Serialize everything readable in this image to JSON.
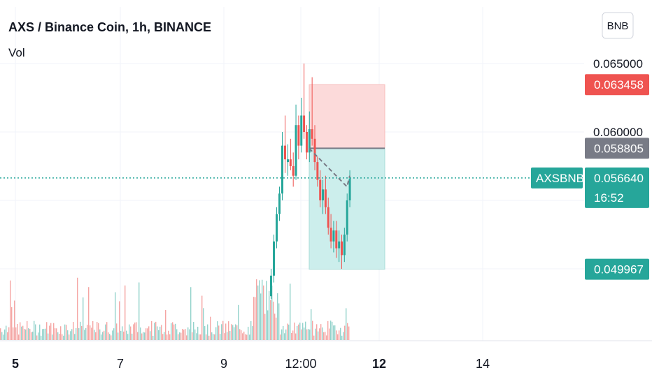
{
  "header": {
    "title": "AXS / Binance Coin, 1h, BINANCE",
    "volume_label": "Vol",
    "currency_button": "BNB"
  },
  "colors": {
    "up": "#26a69a",
    "down": "#ef5350",
    "up_volume": "#94d3cc",
    "down_volume": "#f5a6a4",
    "target_zone": "#cceeec",
    "stop_zone": "#fcdada",
    "entry_line": "#787b86",
    "grid": "#f0f3fa",
    "text": "#131722"
  },
  "chart_data": {
    "type": "candlestick",
    "symbol": "AXSBNB",
    "ylim": [
      0.046,
      0.069
    ],
    "y_ticks": [
      "0.065000",
      "0.060000"
    ],
    "x_ticks": [
      "5",
      "7",
      "9",
      "12:00",
      "12",
      "14"
    ],
    "bold_x_ticks": [
      "5",
      "12"
    ],
    "price_badges": [
      {
        "name": "stop-loss-price",
        "value": "0.063458",
        "color": "#ef5350",
        "y": 0.063458
      },
      {
        "name": "entry-price",
        "value": "0.058805",
        "color": "#787b86",
        "y": 0.058805
      },
      {
        "name": "last-price",
        "value": "0.056640",
        "color": "#26a69a",
        "y": 0.05664,
        "sub": "16:52",
        "symbol_label": "AXSBNB"
      },
      {
        "name": "target-price",
        "value": "0.049967",
        "color": "#26a69a",
        "y": 0.049967
      }
    ],
    "position": {
      "type": "long",
      "entry": 0.058805,
      "stop": 0.063458,
      "target": 0.049967
    },
    "candles": [
      {
        "o": 0.0578,
        "h": 0.0591,
        "l": 0.0568,
        "c": 0.058
      },
      {
        "o": 0.058,
        "h": 0.0595,
        "l": 0.0572,
        "c": 0.0575
      },
      {
        "o": 0.0575,
        "h": 0.0585,
        "l": 0.056,
        "c": 0.0568
      },
      {
        "o": 0.0568,
        "h": 0.062,
        "l": 0.0565,
        "c": 0.0605
      },
      {
        "o": 0.0605,
        "h": 0.0612,
        "l": 0.058,
        "c": 0.059
      },
      {
        "o": 0.059,
        "h": 0.0625,
        "l": 0.0585,
        "c": 0.0612
      },
      {
        "o": 0.0612,
        "h": 0.065,
        "l": 0.0595,
        "c": 0.06
      },
      {
        "o": 0.06,
        "h": 0.0605,
        "l": 0.058,
        "c": 0.0585
      },
      {
        "o": 0.0585,
        "h": 0.0615,
        "l": 0.0578,
        "c": 0.0602
      },
      {
        "o": 0.0602,
        "h": 0.064,
        "l": 0.059,
        "c": 0.0595
      },
      {
        "o": 0.0595,
        "h": 0.0605,
        "l": 0.0572,
        "c": 0.0578
      },
      {
        "o": 0.0578,
        "h": 0.0582,
        "l": 0.056,
        "c": 0.0565
      },
      {
        "o": 0.0565,
        "h": 0.0572,
        "l": 0.0545,
        "c": 0.055
      },
      {
        "o": 0.055,
        "h": 0.0565,
        "l": 0.054,
        "c": 0.0558
      },
      {
        "o": 0.0558,
        "h": 0.0568,
        "l": 0.054,
        "c": 0.0545
      },
      {
        "o": 0.0545,
        "h": 0.0552,
        "l": 0.0525,
        "c": 0.053
      },
      {
        "o": 0.053,
        "h": 0.054,
        "l": 0.0515,
        "c": 0.052
      },
      {
        "o": 0.052,
        "h": 0.0535,
        "l": 0.0512,
        "c": 0.0528
      },
      {
        "o": 0.0528,
        "h": 0.0535,
        "l": 0.0508,
        "c": 0.0515
      },
      {
        "o": 0.0515,
        "h": 0.0528,
        "l": 0.0505,
        "c": 0.052
      },
      {
        "o": 0.052,
        "h": 0.0525,
        "l": 0.05,
        "c": 0.051
      },
      {
        "o": 0.051,
        "h": 0.053,
        "l": 0.0505,
        "c": 0.0525
      },
      {
        "o": 0.0525,
        "h": 0.0555,
        "l": 0.052,
        "c": 0.055
      },
      {
        "o": 0.055,
        "h": 0.0572,
        "l": 0.0545,
        "c": 0.0566
      }
    ]
  }
}
